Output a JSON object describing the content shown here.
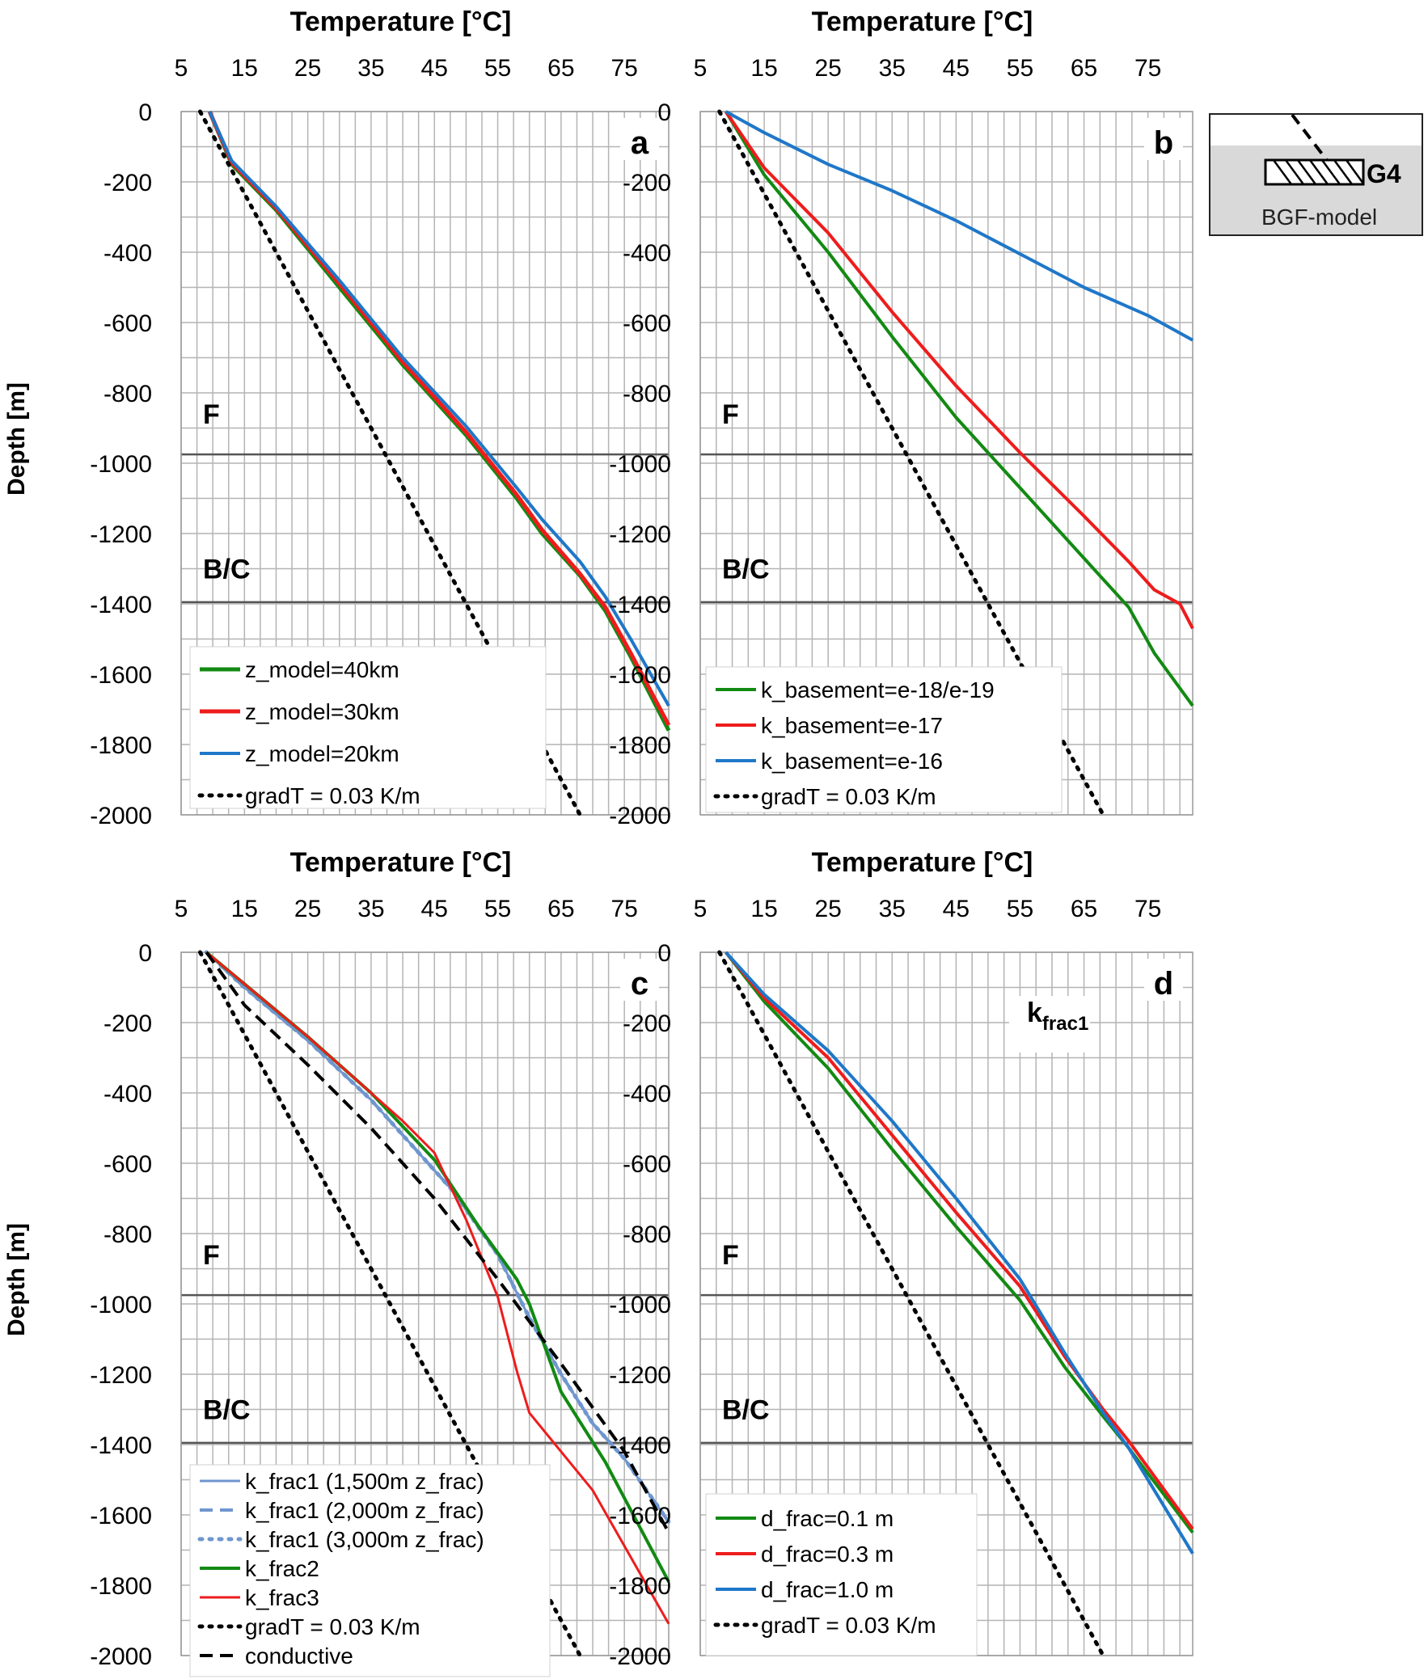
{
  "chart_data": [
    {
      "type": "line",
      "panel_label": "a",
      "title": "Temperature  [°C]",
      "ylabel": "Depth [m]",
      "xticks": [
        "5",
        "15",
        "25",
        "35",
        "45",
        "55",
        "65",
        "75"
      ],
      "yticks": [
        "0",
        "-200",
        "-400",
        "-600",
        "-800",
        "-1000",
        "-1200",
        "-1400",
        "-1600",
        "-1800",
        "-2000"
      ],
      "xlim": [
        5,
        82
      ],
      "ylim": [
        -2000,
        0
      ],
      "grid": true,
      "zone_labels": [
        {
          "text": "F",
          "depth": -860
        },
        {
          "text": "B/C",
          "depth": -1300
        }
      ],
      "horizon_depths": [
        -975,
        -1395
      ],
      "legend_position": "bottom-left",
      "series": [
        {
          "name": "z_model=40km",
          "color": "#128a12",
          "style": "solid",
          "width": 5,
          "x": [
            9.5,
            13,
            20,
            30,
            40,
            50,
            58,
            62,
            68,
            72,
            76,
            82
          ],
          "y": [
            0,
            -150,
            -280,
            -500,
            -720,
            -920,
            -1100,
            -1200,
            -1320,
            -1420,
            -1550,
            -1760
          ]
        },
        {
          "name": "z_model=30km",
          "color": "#ee1c1c",
          "style": "solid",
          "width": 5,
          "x": [
            9.5,
            13,
            20,
            30,
            40,
            50,
            58,
            62,
            68,
            72,
            76,
            82
          ],
          "y": [
            0,
            -145,
            -275,
            -490,
            -712,
            -912,
            -1090,
            -1190,
            -1315,
            -1410,
            -1540,
            -1745
          ]
        },
        {
          "name": "z_model=20km",
          "color": "#1f77c8",
          "style": "solid",
          "width": 4,
          "x": [
            9.5,
            13,
            20,
            30,
            40,
            50,
            58,
            62,
            68,
            72,
            76,
            82
          ],
          "y": [
            0,
            -140,
            -270,
            -480,
            -700,
            -895,
            -1070,
            -1160,
            -1280,
            -1380,
            -1500,
            -1690
          ]
        },
        {
          "name": "gradT = 0.03 K/m",
          "color": "#000000",
          "style": "dotted",
          "width": 5,
          "x": [
            8,
            68
          ],
          "y": [
            0,
            -2000
          ]
        }
      ]
    },
    {
      "type": "line",
      "panel_label": "b",
      "title": "Temperature  [°C]",
      "xticks": [
        "5",
        "15",
        "25",
        "35",
        "45",
        "55",
        "65",
        "75"
      ],
      "yticks": [
        "0",
        "-200",
        "-400",
        "-600",
        "-800",
        "-1000",
        "-1200",
        "-1400",
        "-1600",
        "-1800",
        "-2000"
      ],
      "xlim": [
        5,
        82
      ],
      "ylim": [
        -2000,
        0
      ],
      "grid": true,
      "zone_labels": [
        {
          "text": "F",
          "depth": -860
        },
        {
          "text": "B/C",
          "depth": -1300
        }
      ],
      "horizon_depths": [
        -975,
        -1395
      ],
      "legend_position": "bottom-left",
      "series": [
        {
          "name": "k_basement=e-18/e-19",
          "color": "#128a12",
          "style": "solid",
          "width": 4,
          "x": [
            9,
            15,
            25,
            35,
            45,
            55,
            65,
            72,
            76,
            82
          ],
          "y": [
            0,
            -180,
            -400,
            -640,
            -870,
            -1070,
            -1270,
            -1410,
            -1540,
            -1690
          ]
        },
        {
          "name": "k_basement=e-17",
          "color": "#ee1c1c",
          "style": "solid",
          "width": 4,
          "x": [
            9,
            15,
            25,
            35,
            45,
            55,
            65,
            72,
            76,
            80,
            82
          ],
          "y": [
            0,
            -160,
            -345,
            -570,
            -780,
            -970,
            -1150,
            -1280,
            -1360,
            -1400,
            -1470
          ]
        },
        {
          "name": "k_basement=e-16",
          "color": "#1f77c8",
          "style": "solid",
          "width": 4,
          "x": [
            9,
            15,
            25,
            35,
            45,
            55,
            65,
            75,
            82
          ],
          "y": [
            0,
            -60,
            -150,
            -225,
            -310,
            -405,
            -500,
            -580,
            -650
          ]
        },
        {
          "name": "gradT = 0.03 K/m",
          "color": "#000000",
          "style": "dotted",
          "width": 5,
          "x": [
            8,
            68
          ],
          "y": [
            0,
            -2000
          ]
        }
      ]
    },
    {
      "type": "line",
      "panel_label": "c",
      "title": "Temperature  [°C]",
      "ylabel": "Depth [m]",
      "xticks": [
        "5",
        "15",
        "25",
        "35",
        "45",
        "55",
        "65",
        "75"
      ],
      "yticks": [
        "0",
        "-200",
        "-400",
        "-600",
        "-800",
        "-1000",
        "-1200",
        "-1400",
        "-1600",
        "-1800",
        "-2000"
      ],
      "xlim": [
        5,
        82
      ],
      "ylim": [
        -2000,
        0
      ],
      "grid": true,
      "zone_labels": [
        {
          "text": "F",
          "depth": -860
        },
        {
          "text": "B/C",
          "depth": -1300
        }
      ],
      "horizon_depths": [
        -975,
        -1395
      ],
      "legend_position": "bottom-left",
      "series": [
        {
          "name": "k_frac1 (1,500m z_frac)",
          "color": "#6f96cf",
          "style": "solid",
          "width": 3,
          "x": [
            9,
            15,
            25,
            35,
            42,
            48,
            55,
            60,
            65,
            70,
            75,
            82
          ],
          "y": [
            0,
            -100,
            -250,
            -420,
            -560,
            -680,
            -860,
            -1040,
            -1200,
            -1340,
            -1440,
            -1620
          ]
        },
        {
          "name": "k_frac1 (2,000m z_frac)",
          "color": "#6f96cf",
          "style": "dashed",
          "width": 4,
          "x": [
            9,
            15,
            25,
            35,
            42,
            48,
            55,
            60,
            65,
            70,
            75,
            82
          ],
          "y": [
            0,
            -100,
            -250,
            -420,
            -560,
            -680,
            -860,
            -1040,
            -1200,
            -1340,
            -1440,
            -1620
          ]
        },
        {
          "name": "k_frac1 (3,000m z_frac)",
          "color": "#6f96cf",
          "style": "dotted",
          "width": 5,
          "x": [
            9,
            15,
            25,
            35,
            42,
            48,
            55,
            60,
            65,
            70,
            75,
            82
          ],
          "y": [
            0,
            -100,
            -250,
            -420,
            -560,
            -680,
            -860,
            -1040,
            -1200,
            -1340,
            -1440,
            -1620
          ]
        },
        {
          "name": "k_frac2",
          "color": "#128a12",
          "style": "solid",
          "width": 4,
          "x": [
            9,
            15,
            25,
            35,
            45,
            52,
            58,
            60,
            65,
            72,
            82
          ],
          "y": [
            0,
            -90,
            -240,
            -400,
            -590,
            -780,
            -930,
            -1000,
            -1250,
            -1450,
            -1790
          ]
        },
        {
          "name": "k_frac3",
          "color": "#ee1c1c",
          "style": "solid",
          "width": 3,
          "x": [
            9,
            15,
            25,
            35,
            40,
            45,
            50,
            55,
            58,
            60,
            70,
            82
          ],
          "y": [
            0,
            -90,
            -240,
            -400,
            -480,
            -570,
            -760,
            -980,
            -1190,
            -1310,
            -1530,
            -1910
          ]
        },
        {
          "name": "gradT = 0.03 K/m",
          "color": "#000000",
          "style": "dotted",
          "width": 5,
          "x": [
            8,
            68
          ],
          "y": [
            0,
            -2000
          ]
        },
        {
          "name": "conductive",
          "color": "#000000",
          "style": "dashed",
          "width": 4,
          "x": [
            9,
            15,
            25,
            35,
            45,
            55,
            65,
            75,
            82
          ],
          "y": [
            0,
            -150,
            -320,
            -500,
            -700,
            -930,
            -1170,
            -1420,
            -1650
          ]
        }
      ]
    },
    {
      "type": "line",
      "panel_label": "d",
      "inset_label": "k",
      "inset_label_sub": "frac1",
      "title": "Temperature  [°C]",
      "xticks": [
        "5",
        "15",
        "25",
        "35",
        "45",
        "55",
        "65",
        "75"
      ],
      "yticks": [
        "0",
        "-200",
        "-400",
        "-600",
        "-800",
        "-1000",
        "-1200",
        "-1400",
        "-1600",
        "-1800",
        "-2000"
      ],
      "xlim": [
        5,
        82
      ],
      "ylim": [
        -2000,
        0
      ],
      "grid": true,
      "zone_labels": [
        {
          "text": "F",
          "depth": -860
        },
        {
          "text": "B/C",
          "depth": -1300
        }
      ],
      "horizon_depths": [
        -975,
        -1395
      ],
      "legend_position": "bottom-left",
      "series": [
        {
          "name": "d_frac=0.1 m",
          "color": "#128a12",
          "style": "solid",
          "width": 4,
          "x": [
            9,
            15,
            25,
            35,
            45,
            55,
            62,
            68,
            72,
            82
          ],
          "y": [
            0,
            -140,
            -330,
            -560,
            -780,
            -990,
            -1180,
            -1320,
            -1410,
            -1650
          ]
        },
        {
          "name": "d_frac=0.3 m",
          "color": "#ee1c1c",
          "style": "solid",
          "width": 4,
          "x": [
            9,
            15,
            25,
            35,
            45,
            55,
            62,
            68,
            72,
            82
          ],
          "y": [
            0,
            -130,
            -300,
            -520,
            -740,
            -950,
            -1150,
            -1300,
            -1390,
            -1640
          ]
        },
        {
          "name": "d_frac=1.0 m",
          "color": "#1f77c8",
          "style": "solid",
          "width": 4,
          "x": [
            9,
            15,
            25,
            35,
            45,
            55,
            62,
            68,
            72,
            82
          ],
          "y": [
            0,
            -120,
            -280,
            -480,
            -700,
            -930,
            -1140,
            -1310,
            -1410,
            -1710
          ]
        },
        {
          "name": "gradT = 0.03 K/m",
          "color": "#000000",
          "style": "dotted",
          "width": 5,
          "x": [
            8,
            68
          ],
          "y": [
            0,
            -2000
          ]
        }
      ]
    }
  ],
  "inset_diagram": {
    "label": "G4",
    "caption": "BGF-model"
  }
}
